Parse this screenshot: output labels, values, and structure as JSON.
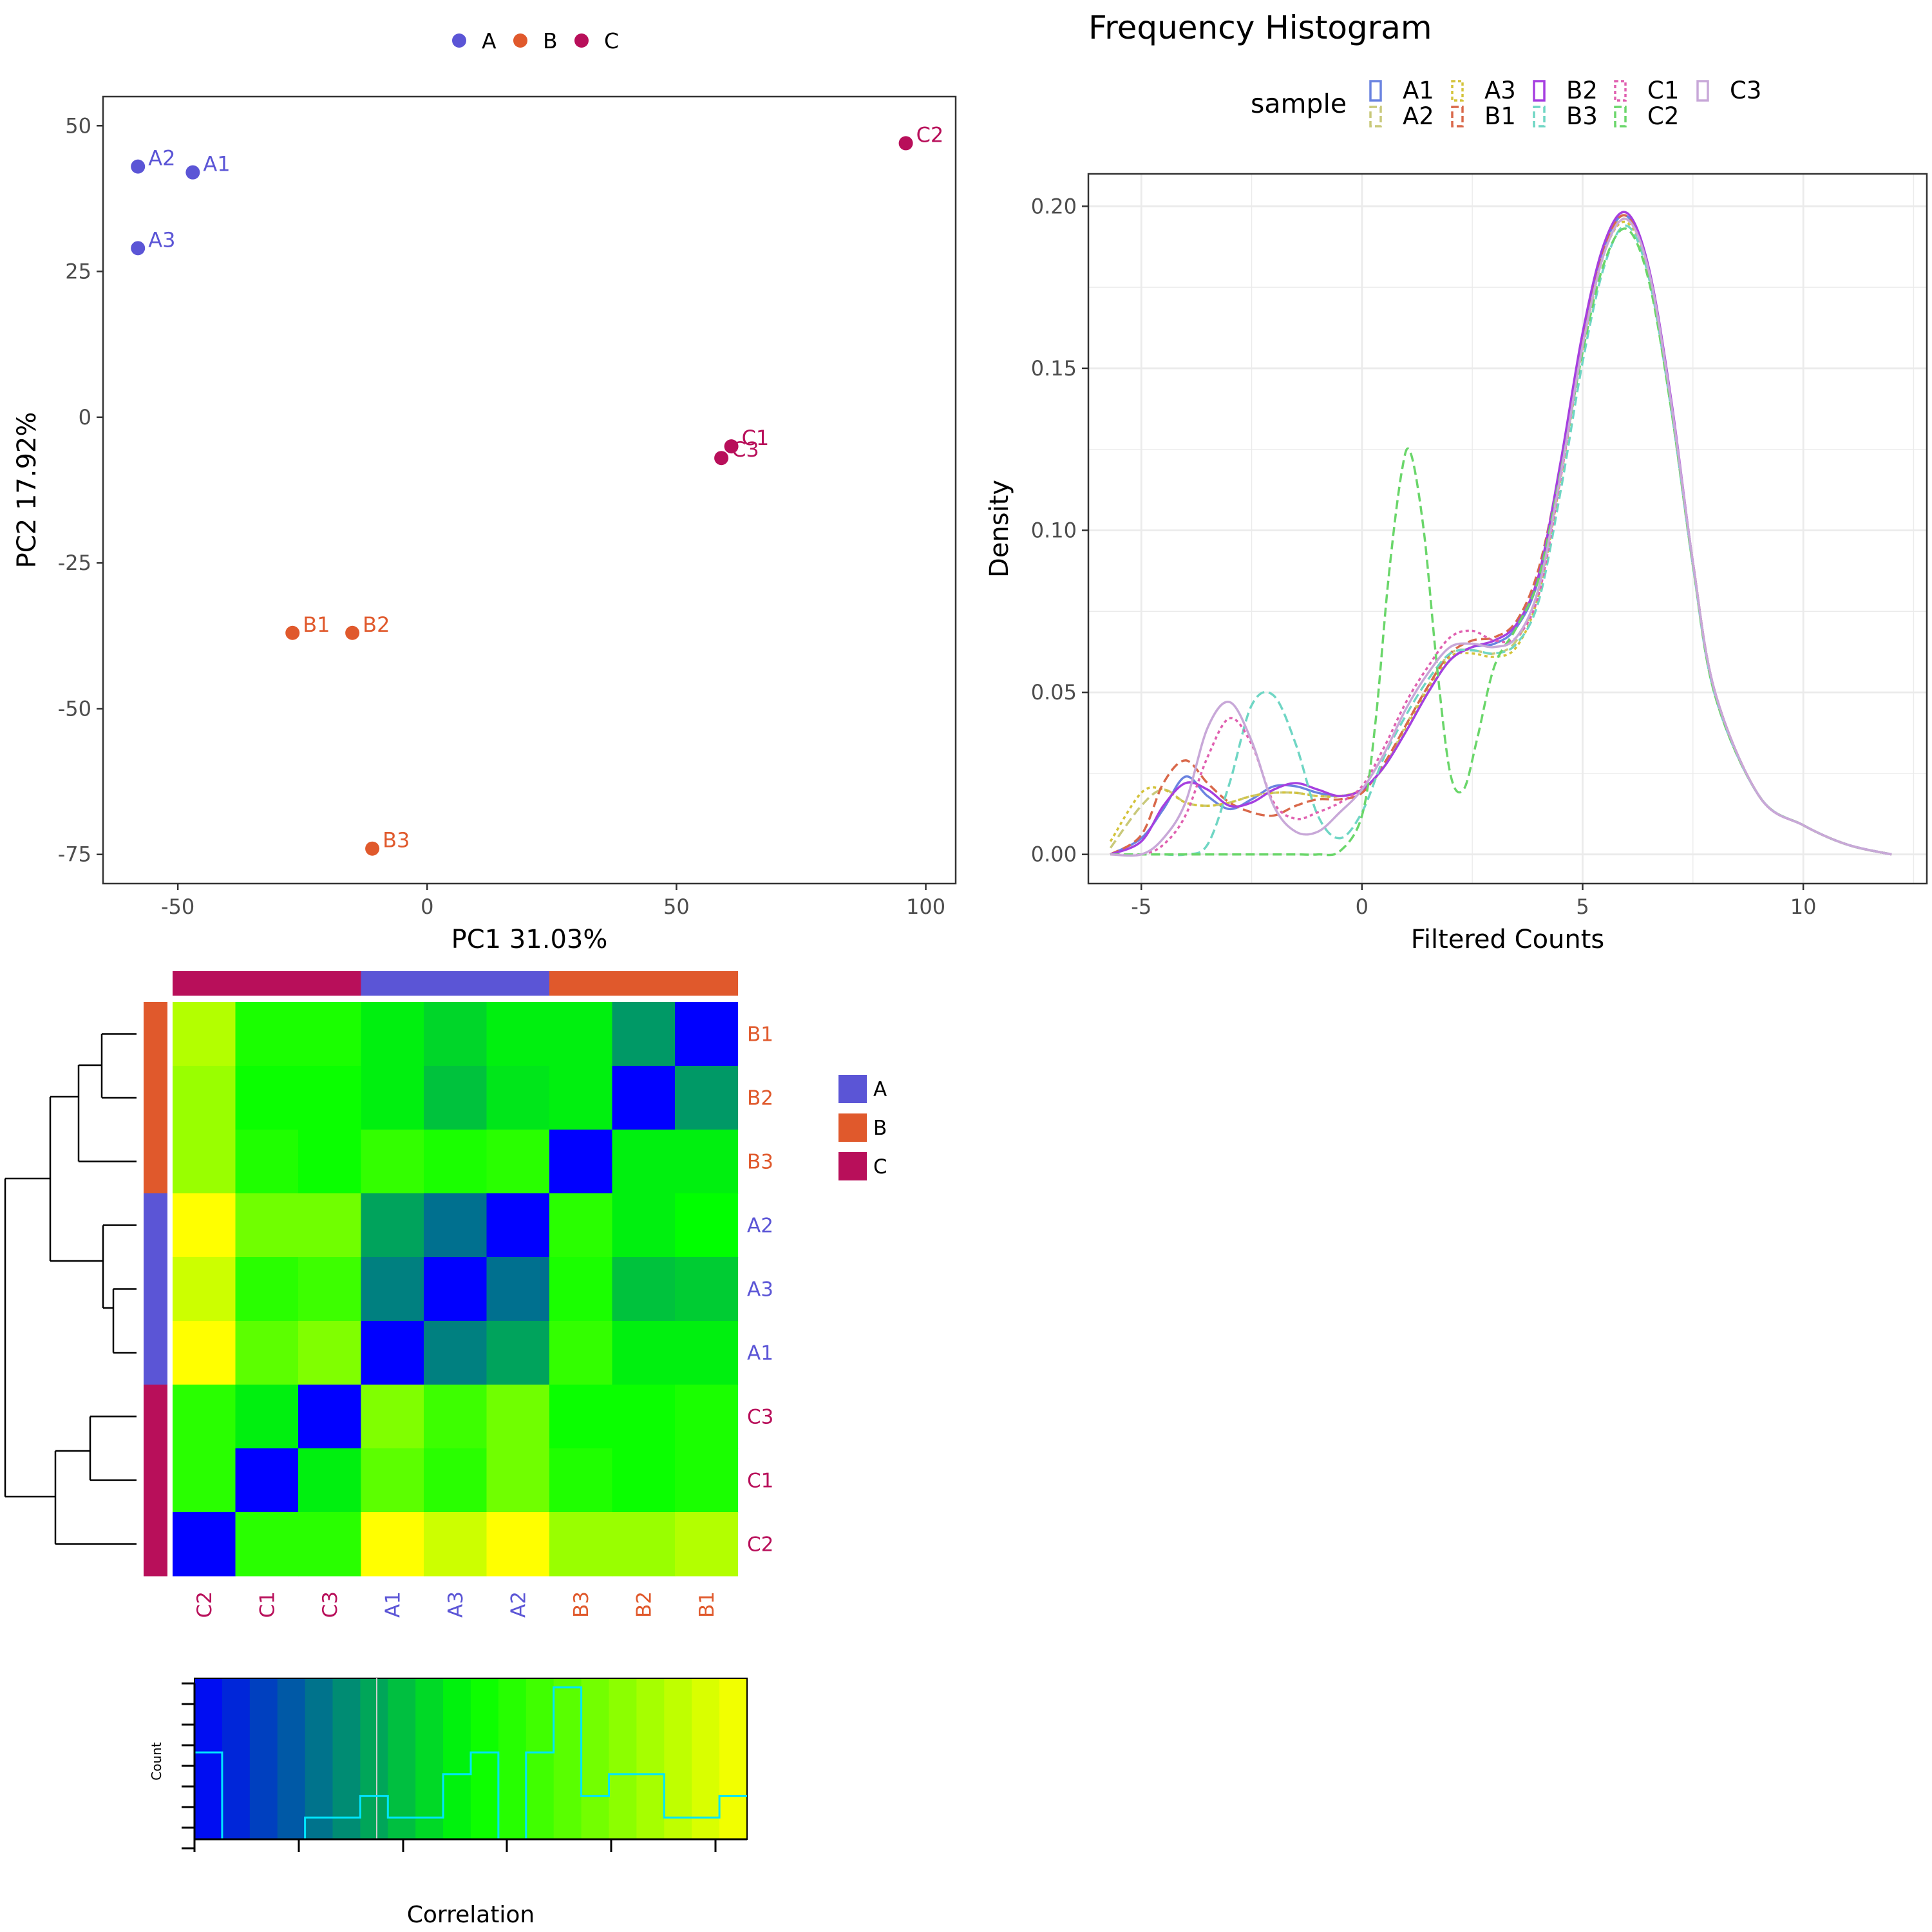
{
  "colors": {
    "A": "#5b55d6",
    "B": "#e0592c",
    "C": "#b80f5a",
    "panel_border": "#333333",
    "grid": "#ebebeb",
    "heat_low": "#0000ff",
    "heat_mid": "#00ff00",
    "heat_high": "#ffff00",
    "hist_line": "#00e5ff"
  },
  "chart_data": [
    {
      "id": "pca",
      "type": "scatter",
      "title": "",
      "xlabel": "PC1 31.03%",
      "ylabel": "PC2 17.92%",
      "xlim": [
        -65,
        106
      ],
      "ylim": [
        -80,
        55
      ],
      "xticks": [
        -50,
        0,
        50,
        100
      ],
      "yticks": [
        50,
        25,
        0,
        -25,
        -50,
        -75
      ],
      "legend": {
        "position": "top",
        "entries": [
          "A",
          "B",
          "C"
        ]
      },
      "points": [
        {
          "label": "A1",
          "group": "A",
          "x": -47,
          "y": 42
        },
        {
          "label": "A2",
          "group": "A",
          "x": -58,
          "y": 43
        },
        {
          "label": "A3",
          "group": "A",
          "x": -58,
          "y": 29
        },
        {
          "label": "B1",
          "group": "B",
          "x": -27,
          "y": -37
        },
        {
          "label": "B2",
          "group": "B",
          "x": -15,
          "y": -37
        },
        {
          "label": "B3",
          "group": "B",
          "x": -11,
          "y": -74
        },
        {
          "label": "C1",
          "group": "C",
          "x": 61,
          "y": -5
        },
        {
          "label": "C3",
          "group": "C",
          "x": 59,
          "y": -7
        },
        {
          "label": "C2",
          "group": "C",
          "x": 96,
          "y": 47
        }
      ]
    },
    {
      "id": "density",
      "type": "line",
      "title": "Frequency Histogram",
      "xlabel": "Filtered Counts",
      "ylabel": "Density",
      "xlim": [
        -6.2,
        12.8
      ],
      "ylim": [
        -0.009,
        0.21
      ],
      "xticks": [
        -5,
        0,
        5,
        10
      ],
      "yticks": [
        0.0,
        0.05,
        0.1,
        0.15,
        0.2
      ],
      "ytick_labels": [
        "0.00",
        "0.05",
        "0.10",
        "0.15",
        "0.20"
      ],
      "legend": {
        "title": "sample",
        "position": "top"
      },
      "series": [
        {
          "name": "A1",
          "color": "#6a83e0",
          "dash": "",
          "x": [
            -5.7,
            -5,
            -4.5,
            -4,
            -3.5,
            -3,
            -2.5,
            -2,
            -1.5,
            -1,
            -0.5,
            0,
            0.5,
            1,
            1.5,
            2,
            2.5,
            3,
            3.5,
            4,
            4.5,
            5,
            5.5,
            6,
            6.5,
            7,
            7.5,
            8,
            9,
            10,
            11,
            12
          ],
          "y": [
            0.0,
            0.005,
            0.014,
            0.024,
            0.018,
            0.014,
            0.017,
            0.021,
            0.021,
            0.019,
            0.018,
            0.02,
            0.027,
            0.038,
            0.05,
            0.06,
            0.064,
            0.065,
            0.07,
            0.085,
            0.12,
            0.16,
            0.188,
            0.197,
            0.18,
            0.14,
            0.09,
            0.05,
            0.018,
            0.009,
            0.003,
            0.0
          ]
        },
        {
          "name": "A2",
          "color": "#c9c97a",
          "dash": "14,7",
          "x": [
            -5.7,
            -5,
            -4.5,
            -4,
            -3.5,
            -3,
            -2.5,
            -2,
            -1.5,
            -1,
            -0.5,
            0,
            0.5,
            1,
            1.5,
            2,
            2.5,
            3,
            3.5,
            4,
            4.5,
            5,
            5.5,
            6,
            6.5,
            7,
            7.5,
            8,
            9,
            10,
            11,
            12
          ],
          "y": [
            0.002,
            0.015,
            0.02,
            0.016,
            0.015,
            0.016,
            0.018,
            0.019,
            0.019,
            0.018,
            0.018,
            0.02,
            0.027,
            0.04,
            0.052,
            0.062,
            0.063,
            0.062,
            0.066,
            0.082,
            0.118,
            0.158,
            0.187,
            0.196,
            0.18,
            0.14,
            0.09,
            0.05,
            0.018,
            0.009,
            0.003,
            0.0
          ]
        },
        {
          "name": "A3",
          "color": "#d4c33a",
          "dash": "5,5",
          "x": [
            -5.7,
            -5,
            -4.5,
            -4,
            -3.5,
            -3,
            -2.5,
            -2,
            -1.5,
            -1,
            -0.5,
            0,
            0.5,
            1,
            1.5,
            2,
            2.5,
            3,
            3.5,
            4,
            4.5,
            5,
            5.5,
            6,
            6.5,
            7,
            7.5,
            8,
            9,
            10,
            11,
            12
          ],
          "y": [
            0.004,
            0.019,
            0.02,
            0.016,
            0.015,
            0.016,
            0.018,
            0.019,
            0.019,
            0.018,
            0.018,
            0.02,
            0.027,
            0.039,
            0.051,
            0.061,
            0.062,
            0.061,
            0.064,
            0.08,
            0.116,
            0.156,
            0.186,
            0.195,
            0.179,
            0.139,
            0.09,
            0.05,
            0.018,
            0.009,
            0.003,
            0.0
          ]
        },
        {
          "name": "B1",
          "color": "#d9684a",
          "dash": "14,7",
          "x": [
            -5.7,
            -5,
            -4.5,
            -4,
            -3.5,
            -3,
            -2.5,
            -2,
            -1.5,
            -1,
            -0.5,
            0,
            0.5,
            1,
            1.5,
            2,
            2.5,
            3,
            3.5,
            4,
            4.5,
            5,
            5.5,
            6,
            6.5,
            7,
            7.5,
            8,
            9,
            10,
            11,
            12
          ],
          "y": [
            0.0,
            0.006,
            0.022,
            0.029,
            0.022,
            0.016,
            0.013,
            0.012,
            0.015,
            0.017,
            0.017,
            0.019,
            0.028,
            0.04,
            0.052,
            0.062,
            0.066,
            0.067,
            0.072,
            0.088,
            0.12,
            0.16,
            0.188,
            0.197,
            0.18,
            0.14,
            0.09,
            0.05,
            0.018,
            0.009,
            0.003,
            0.0
          ]
        },
        {
          "name": "B2",
          "color": "#a63fe0",
          "dash": "",
          "x": [
            -5.7,
            -5,
            -4.5,
            -4,
            -3.5,
            -3,
            -2.5,
            -2,
            -1.5,
            -1,
            -0.5,
            0,
            0.5,
            1,
            1.5,
            2,
            2.5,
            3,
            3.5,
            4,
            4.5,
            5,
            5.5,
            6,
            6.5,
            7,
            7.5,
            8,
            9,
            10,
            11,
            12
          ],
          "y": [
            0.0,
            0.004,
            0.015,
            0.022,
            0.02,
            0.015,
            0.016,
            0.02,
            0.022,
            0.02,
            0.018,
            0.02,
            0.027,
            0.038,
            0.05,
            0.06,
            0.064,
            0.066,
            0.071,
            0.086,
            0.121,
            0.161,
            0.189,
            0.198,
            0.181,
            0.141,
            0.09,
            0.05,
            0.018,
            0.009,
            0.003,
            0.0
          ]
        },
        {
          "name": "B3",
          "color": "#6fd6c4",
          "dash": "14,7",
          "x": [
            -5.7,
            -5,
            -4.5,
            -4,
            -3.5,
            -3,
            -2.5,
            -2,
            -1.5,
            -1,
            -0.5,
            0,
            0.5,
            1,
            1.5,
            2,
            2.5,
            3,
            3.5,
            4,
            4.5,
            5,
            5.5,
            6,
            6.5,
            7,
            7.5,
            8,
            9,
            10,
            11,
            12
          ],
          "y": [
            0.0,
            0.0,
            0.0,
            0.0,
            0.003,
            0.022,
            0.046,
            0.049,
            0.034,
            0.012,
            0.005,
            0.013,
            0.03,
            0.043,
            0.054,
            0.062,
            0.063,
            0.062,
            0.065,
            0.078,
            0.112,
            0.152,
            0.182,
            0.194,
            0.178,
            0.138,
            0.089,
            0.049,
            0.018,
            0.009,
            0.003,
            0.0
          ]
        },
        {
          "name": "C1",
          "color": "#e060b0",
          "dash": "5,5",
          "x": [
            -5.7,
            -5,
            -4.5,
            -4,
            -3.5,
            -3,
            -2.5,
            -2,
            -1.5,
            -1,
            -0.5,
            0,
            0.5,
            1,
            1.5,
            2,
            2.5,
            3,
            3.5,
            4,
            4.5,
            5,
            5.5,
            6,
            6.5,
            7,
            7.5,
            8,
            9,
            10,
            11,
            12
          ],
          "y": [
            0.0,
            0.0,
            0.003,
            0.012,
            0.03,
            0.042,
            0.034,
            0.016,
            0.011,
            0.013,
            0.016,
            0.021,
            0.033,
            0.047,
            0.058,
            0.067,
            0.069,
            0.066,
            0.067,
            0.08,
            0.116,
            0.157,
            0.186,
            0.196,
            0.18,
            0.14,
            0.09,
            0.05,
            0.018,
            0.009,
            0.003,
            0.0
          ]
        },
        {
          "name": "C2",
          "color": "#6ad66a",
          "dash": "14,7",
          "x": [
            -5.7,
            -5,
            -4.5,
            -4,
            -3.5,
            -3,
            -2.5,
            -2,
            -1.5,
            -1,
            -0.5,
            0,
            0.3,
            0.6,
            0.9,
            1.1,
            1.4,
            1.7,
            2,
            2.3,
            2.6,
            3,
            3.5,
            4,
            4.5,
            5,
            5.5,
            6,
            6.5,
            7,
            7.5,
            8,
            9,
            10,
            11,
            12
          ],
          "y": [
            0.0,
            0.0,
            0.0,
            0.0,
            0.0,
            0.0,
            0.0,
            0.0,
            0.0,
            0.0,
            0.001,
            0.012,
            0.04,
            0.085,
            0.118,
            0.124,
            0.1,
            0.058,
            0.025,
            0.02,
            0.035,
            0.058,
            0.07,
            0.085,
            0.118,
            0.155,
            0.183,
            0.193,
            0.177,
            0.138,
            0.089,
            0.049,
            0.018,
            0.009,
            0.003,
            0.0
          ]
        },
        {
          "name": "C3",
          "color": "#c8a8d8",
          "dash": "",
          "x": [
            -5.7,
            -5,
            -4.5,
            -4,
            -3.5,
            -3,
            -2.5,
            -2,
            -1.5,
            -1,
            -0.5,
            0,
            0.5,
            1,
            1.5,
            2,
            2.5,
            3,
            3.5,
            4,
            4.5,
            5,
            5.5,
            6,
            6.5,
            7,
            7.5,
            8,
            9,
            10,
            11,
            12
          ],
          "y": [
            0.0,
            0.0,
            0.005,
            0.016,
            0.039,
            0.047,
            0.035,
            0.015,
            0.007,
            0.007,
            0.013,
            0.02,
            0.031,
            0.045,
            0.056,
            0.064,
            0.065,
            0.064,
            0.067,
            0.082,
            0.117,
            0.157,
            0.186,
            0.196,
            0.18,
            0.14,
            0.09,
            0.05,
            0.018,
            0.009,
            0.003,
            0.0
          ]
        }
      ]
    },
    {
      "id": "corr-heatmap",
      "type": "heatmap",
      "title": "",
      "rows": [
        "B1",
        "B2",
        "B3",
        "A2",
        "A3",
        "A1",
        "C3",
        "C1",
        "C2"
      ],
      "row_groups": [
        "B",
        "B",
        "B",
        "A",
        "A",
        "A",
        "C",
        "C",
        "C"
      ],
      "cols": [
        "C2",
        "C1",
        "C3",
        "A1",
        "A3",
        "A2",
        "B3",
        "B2",
        "B1"
      ],
      "col_groups": [
        "C",
        "C",
        "C",
        "A",
        "A",
        "A",
        "B",
        "B",
        "B"
      ],
      "color_scale": [
        "low",
        "mid",
        "high"
      ],
      "legend": {
        "position": "right",
        "entries": [
          "A",
          "B",
          "C"
        ]
      },
      "values": [
        [
          0.85,
          0.55,
          0.55,
          0.47,
          0.42,
          0.47,
          0.47,
          0.3,
          0.0
        ],
        [
          0.8,
          0.52,
          0.52,
          0.47,
          0.38,
          0.45,
          0.47,
          0.0,
          0.3
        ],
        [
          0.8,
          0.56,
          0.52,
          0.6,
          0.55,
          0.58,
          0.0,
          0.47,
          0.47
        ],
        [
          1.0,
          0.72,
          0.72,
          0.32,
          0.22,
          0.0,
          0.58,
          0.47,
          0.5
        ],
        [
          0.9,
          0.58,
          0.62,
          0.25,
          0.0,
          0.22,
          0.55,
          0.38,
          0.4
        ],
        [
          1.0,
          0.68,
          0.75,
          0.0,
          0.25,
          0.32,
          0.6,
          0.47,
          0.47
        ],
        [
          0.58,
          0.47,
          0.0,
          0.75,
          0.62,
          0.72,
          0.52,
          0.52,
          0.55
        ],
        [
          0.58,
          0.0,
          0.47,
          0.68,
          0.58,
          0.72,
          0.56,
          0.52,
          0.55
        ],
        [
          0.0,
          0.58,
          0.58,
          1.0,
          0.9,
          1.0,
          0.8,
          0.8,
          0.85
        ]
      ]
    },
    {
      "id": "color-key",
      "type": "bar",
      "title": "",
      "xlabel": "Correlation",
      "ylabel": "Count",
      "histogram_counts": [
        4,
        0,
        0,
        0,
        1,
        1,
        2,
        1,
        1,
        3,
        4,
        0,
        4,
        7,
        2,
        3,
        3,
        1,
        1,
        2
      ]
    }
  ]
}
